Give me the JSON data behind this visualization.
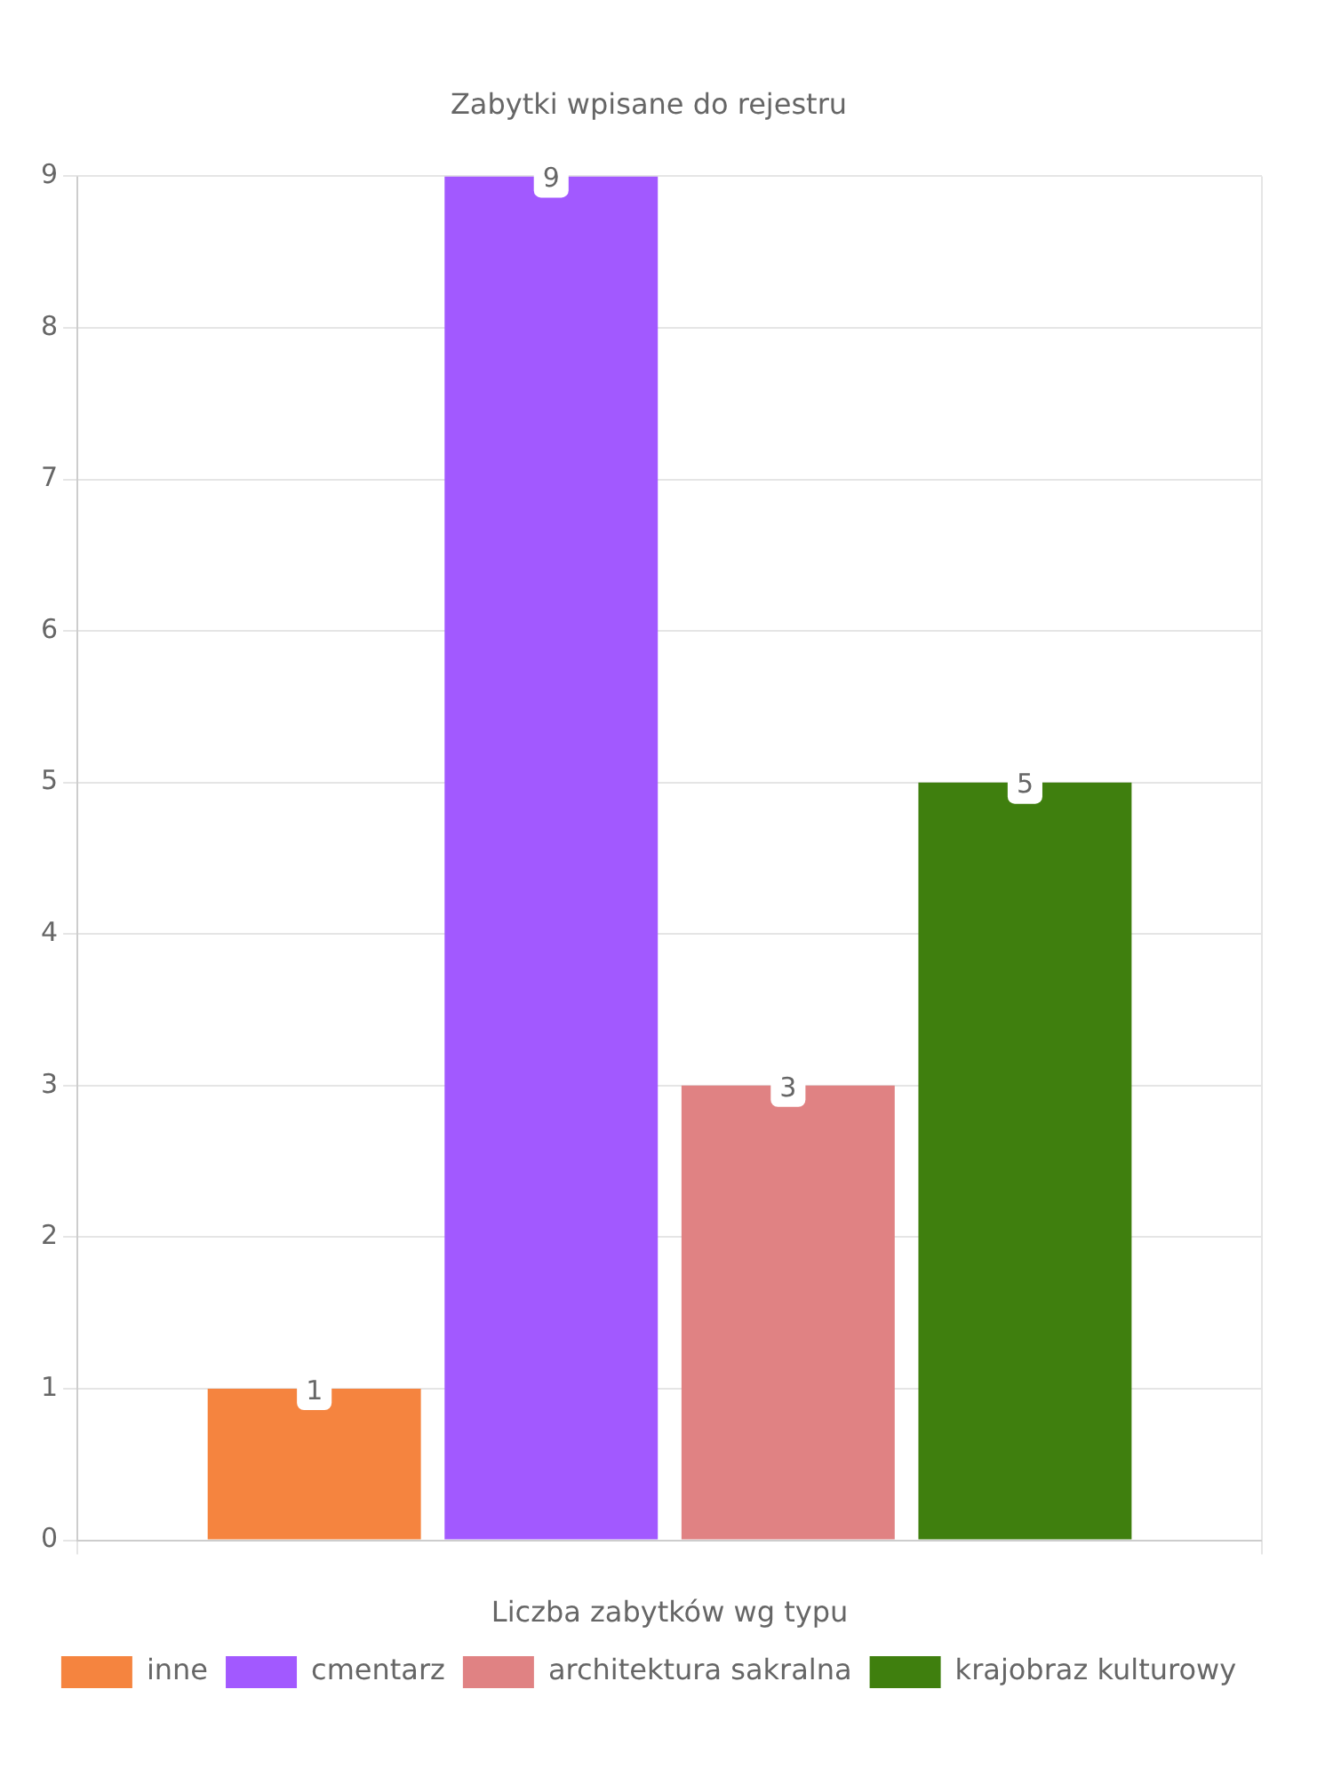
{
  "chart_data": {
    "type": "bar",
    "title": "Zabytki wpisane do rejestru",
    "xlabel": "Liczba zabytków wg typu",
    "categories": [
      null
    ],
    "series": [
      {
        "name": "inne",
        "color": "#f5843f",
        "values": [
          1
        ]
      },
      {
        "name": "cmentarz",
        "color": "#a259ff",
        "values": [
          9
        ]
      },
      {
        "name": "architektura sakralna",
        "color": "#e08283",
        "values": [
          3
        ]
      },
      {
        "name": "krajobraz kulturowy",
        "color": "#3f7f0e",
        "values": [
          5
        ]
      }
    ],
    "ylim": [
      0,
      9
    ],
    "yticks": [
      0,
      1,
      2,
      3,
      4,
      5,
      6,
      7,
      8,
      9
    ],
    "grid": true,
    "legend": "bottom",
    "data_labels": true
  }
}
